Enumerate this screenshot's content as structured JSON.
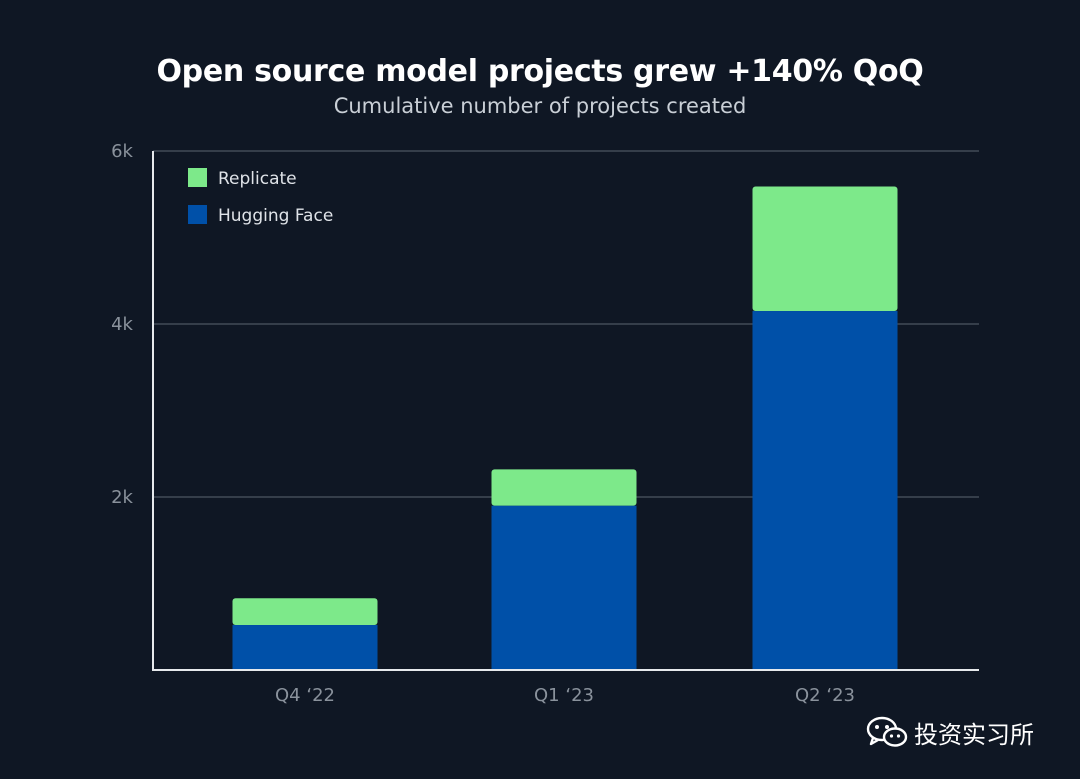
{
  "chart_data": {
    "type": "bar",
    "stacked": true,
    "title": "Open source model projects grew +140% QoQ",
    "subtitle": "Cumulative number of projects created",
    "xlabel": "",
    "ylabel": "",
    "categories": [
      "Q4 ‘22",
      "Q1 ‘23",
      "Q2 ‘23"
    ],
    "series": [
      {
        "name": "Hugging Face",
        "color": "#0050a8",
        "values": [
          520,
          1900,
          4150
        ]
      },
      {
        "name": "Replicate",
        "color": "#7de98a",
        "values": [
          310,
          420,
          1440
        ]
      }
    ],
    "ylim": [
      0,
      6000
    ],
    "yticks": [
      2000,
      4000,
      6000
    ],
    "ytick_labels": [
      "2k",
      "4k",
      "6k"
    ],
    "grid": true,
    "legend": {
      "position": "top-left",
      "items": [
        "Replicate",
        "Hugging Face"
      ]
    }
  },
  "watermark": {
    "text": "投资实习所",
    "icon": "wechat-icon"
  }
}
